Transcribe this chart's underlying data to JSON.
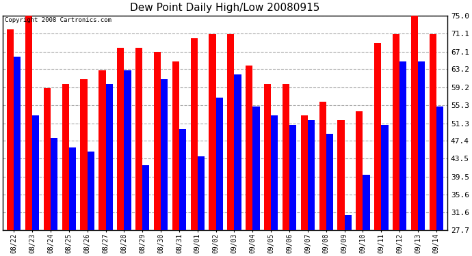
{
  "title": "Dew Point Daily High/Low 20080915",
  "copyright": "Copyright 2008 Cartronics.com",
  "dates": [
    "08/22",
    "08/23",
    "08/24",
    "08/25",
    "08/26",
    "08/27",
    "08/28",
    "08/29",
    "08/30",
    "08/31",
    "09/01",
    "09/02",
    "09/03",
    "09/04",
    "09/05",
    "09/06",
    "09/07",
    "09/08",
    "09/09",
    "09/10",
    "09/11",
    "09/12",
    "09/13",
    "09/14"
  ],
  "highs": [
    72,
    75,
    59,
    60,
    61,
    63,
    68,
    68,
    67,
    65,
    70,
    71,
    71,
    64,
    60,
    60,
    53,
    56,
    52,
    54,
    69,
    71,
    76,
    71
  ],
  "lows": [
    66,
    53,
    48,
    46,
    45,
    60,
    63,
    42,
    61,
    50,
    44,
    57,
    62,
    55,
    53,
    51,
    52,
    49,
    31,
    40,
    51,
    65,
    65,
    55
  ],
  "high_color": "#ff0000",
  "low_color": "#0000ff",
  "bg_color": "#ffffff",
  "plot_bg_color": "#ffffff",
  "yticks": [
    27.7,
    31.6,
    35.6,
    39.5,
    43.5,
    47.4,
    51.3,
    55.3,
    59.2,
    63.2,
    67.1,
    71.1,
    75.0
  ],
  "ymin": 27.7,
  "ymax": 75.0,
  "grid_color": "#aaaaaa",
  "bar_width": 0.38,
  "figwidth": 6.9,
  "figheight": 3.75,
  "dpi": 100
}
